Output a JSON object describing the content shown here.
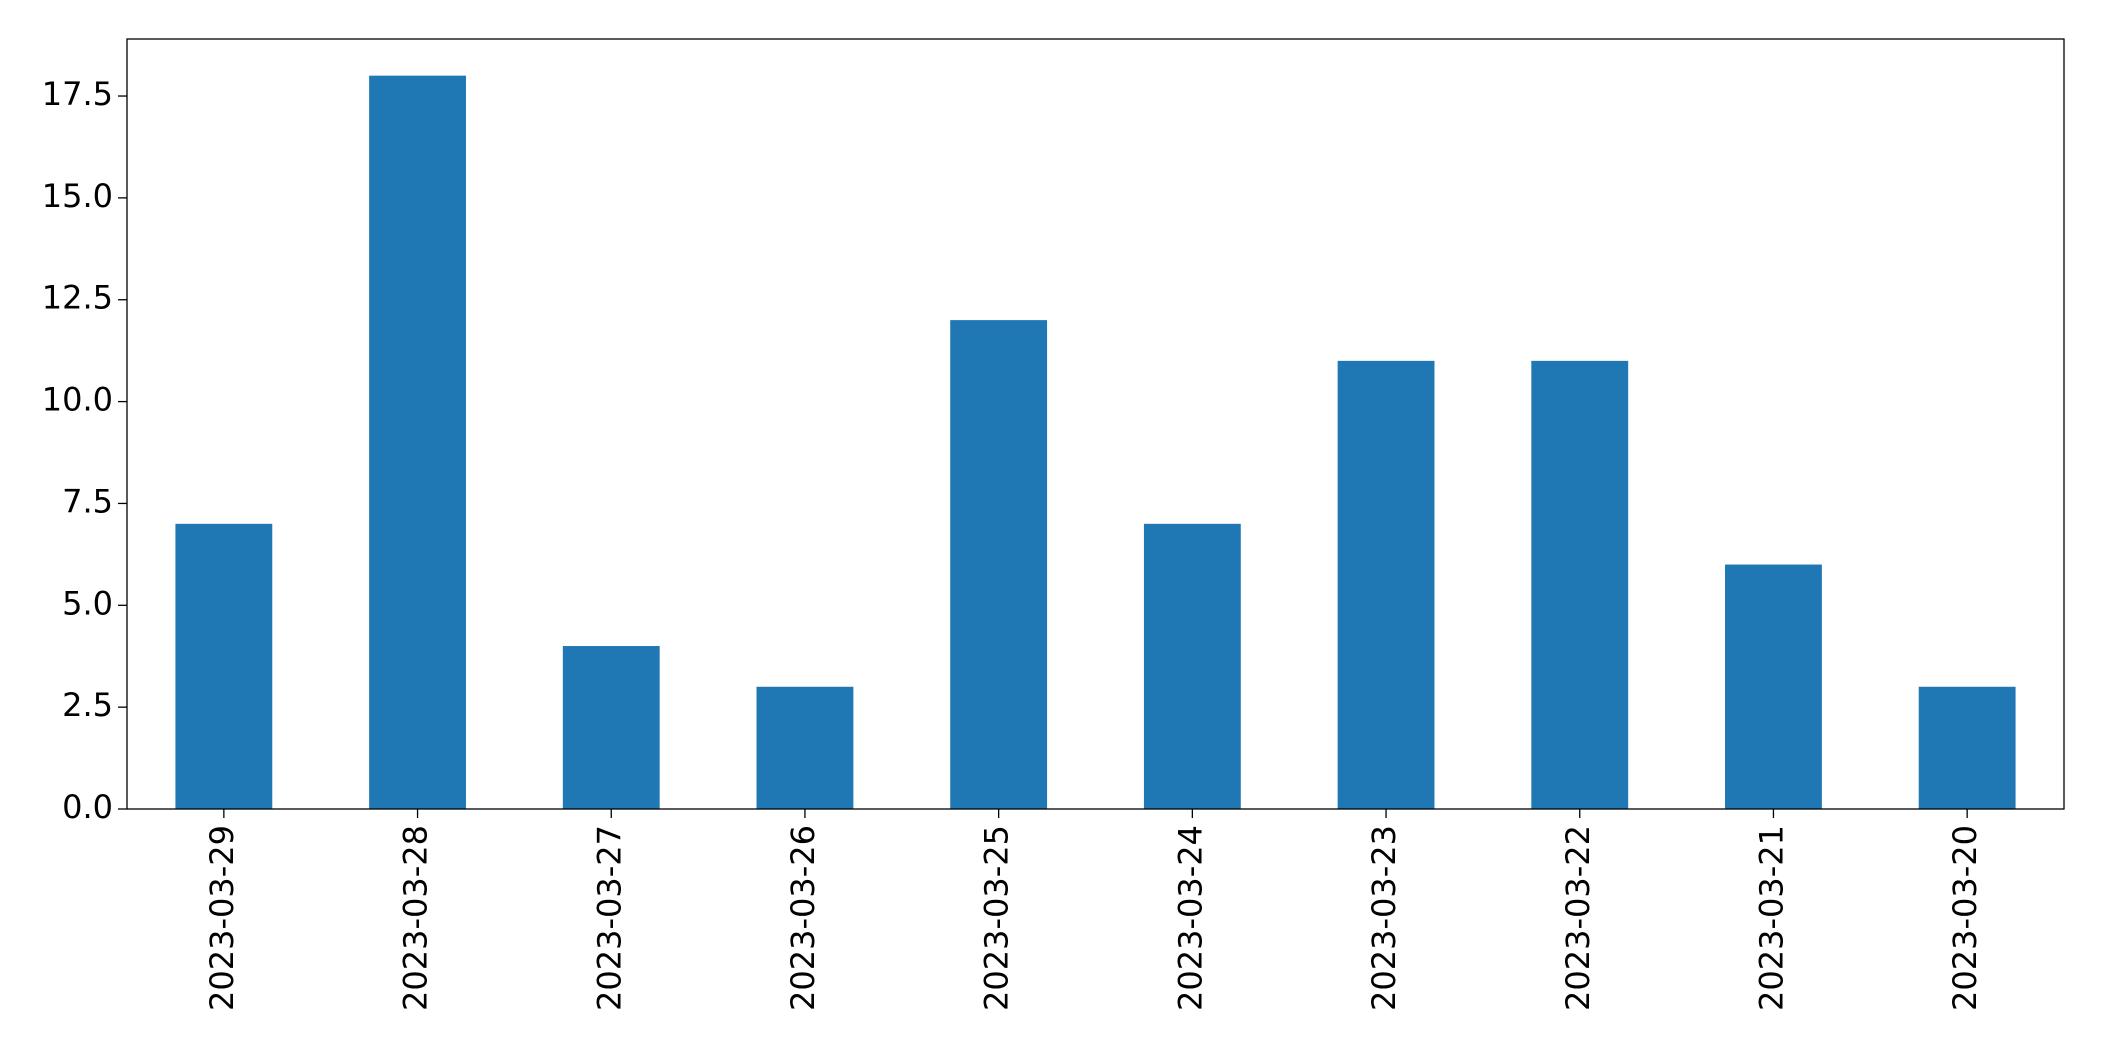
{
  "chart_data": {
    "type": "bar",
    "categories": [
      "2023-03-29",
      "2023-03-28",
      "2023-03-27",
      "2023-03-26",
      "2023-03-25",
      "2023-03-24",
      "2023-03-23",
      "2023-03-22",
      "2023-03-21",
      "2023-03-20"
    ],
    "values": [
      7,
      18,
      4,
      3,
      12,
      7,
      11,
      11,
      6,
      3
    ],
    "color": "#1f77b4",
    "ylim": [
      0,
      18.9
    ],
    "yticks": [
      {
        "value": 0,
        "label": "0.0"
      },
      2.5,
      {
        "value": 5,
        "label": "5.0"
      },
      7.5,
      {
        "value": 10,
        "label": "10.0"
      },
      12.5,
      {
        "value": 15,
        "label": "15.0"
      },
      17.5
    ],
    "grid": false
  }
}
